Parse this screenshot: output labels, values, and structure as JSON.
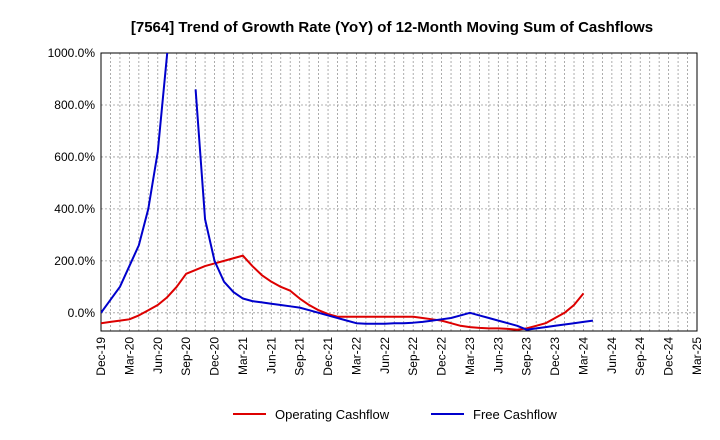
{
  "chart_data": {
    "type": "line",
    "title": "[7564]  Trend of Growth Rate (YoY) of 12-Month Moving Sum of Cashflows",
    "ylim": [
      -70,
      1000
    ],
    "y_ticks": [
      0,
      200,
      400,
      600,
      800,
      1000
    ],
    "y_tick_labels": [
      "0.0%",
      "200.0%",
      "400.0%",
      "600.0%",
      "800.0%",
      "1000.0%"
    ],
    "x_tick_labels": [
      "Dec-19",
      "Mar-20",
      "Jun-20",
      "Sep-20",
      "Dec-20",
      "Mar-21",
      "Jun-21",
      "Sep-21",
      "Dec-21",
      "Mar-22",
      "Jun-22",
      "Sep-22",
      "Dec-22",
      "Mar-23",
      "Jun-23",
      "Sep-23",
      "Dec-23",
      "Mar-24",
      "Jun-24",
      "Sep-24",
      "Dec-24",
      "Mar-25"
    ],
    "x_months": [
      "2019-12",
      "2020-01",
      "2020-02",
      "2020-03",
      "2020-04",
      "2020-05",
      "2020-06",
      "2020-07",
      "2020-08",
      "2020-09",
      "2020-10",
      "2020-11",
      "2020-12",
      "2021-01",
      "2021-02",
      "2021-03",
      "2021-04",
      "2021-05",
      "2021-06",
      "2021-07",
      "2021-08",
      "2021-09",
      "2021-10",
      "2021-11",
      "2021-12",
      "2022-01",
      "2022-02",
      "2022-03",
      "2022-04",
      "2022-05",
      "2022-06",
      "2022-07",
      "2022-08",
      "2022-09",
      "2022-10",
      "2022-11",
      "2022-12",
      "2023-01",
      "2023-02",
      "2023-03",
      "2023-04",
      "2023-05",
      "2023-06",
      "2023-07",
      "2023-08",
      "2023-09",
      "2023-10",
      "2023-11",
      "2023-12",
      "2024-01",
      "2024-02",
      "2024-03",
      "2024-04",
      "2024-05",
      "2024-06",
      "2024-07",
      "2024-08",
      "2024-09",
      "2024-10",
      "2024-11",
      "2024-12",
      "2025-01",
      "2025-02",
      "2025-03"
    ],
    "grid": true,
    "legend_position": "bottom",
    "series": [
      {
        "name": "Operating Cashflow",
        "color": "#dd0000",
        "values": [
          -40,
          -35,
          -30,
          -25,
          -10,
          10,
          30,
          60,
          100,
          150,
          165,
          180,
          190,
          200,
          210,
          220,
          180,
          145,
          120,
          100,
          85,
          55,
          30,
          10,
          -5,
          -15,
          -15,
          -15,
          -15,
          -15,
          -15,
          -15,
          -15,
          -15,
          -20,
          -25,
          -30,
          -40,
          -50,
          -55,
          -58,
          -60,
          -60,
          -62,
          -65,
          -60,
          -50,
          -40,
          -20,
          0,
          30,
          75,
          null,
          null,
          null,
          null,
          null,
          null,
          null,
          null,
          null,
          null,
          null,
          null
        ]
      },
      {
        "name": "Free Cashflow",
        "color": "#0000cc",
        "values": [
          0,
          50,
          100,
          180,
          260,
          400,
          620,
          1000,
          null,
          null,
          null,
          null,
          null,
          null,
          null,
          null,
          null,
          null,
          null,
          null,
          null,
          null,
          null,
          null,
          null,
          null,
          null,
          null,
          null,
          null,
          null,
          null,
          null,
          null,
          null,
          null,
          null,
          null,
          null,
          null,
          null,
          null,
          null,
          null,
          null,
          null,
          null,
          null,
          null,
          null,
          null,
          null,
          null,
          null,
          null,
          null,
          null,
          null,
          null,
          null,
          null,
          null,
          null,
          null
        ],
        "segments": [
          {
            "start_index": 0,
            "values": [
              0,
              50,
              100,
              180,
              260,
              400,
              620,
              1000
            ]
          },
          {
            "start_index": 10,
            "values": [
              860,
              360,
              200,
              120,
              80,
              55,
              45,
              40,
              35,
              30,
              25,
              20,
              10,
              0,
              -10,
              -20,
              -30,
              -40,
              -42,
              -42,
              -42,
              -40,
              -40,
              -38,
              -35,
              -30,
              -25,
              -20,
              -10,
              0,
              -10,
              -20,
              -30,
              -40,
              -50,
              -65,
              -60,
              -55,
              -50,
              -45,
              -40,
              -35,
              -30
            ]
          }
        ]
      }
    ]
  }
}
